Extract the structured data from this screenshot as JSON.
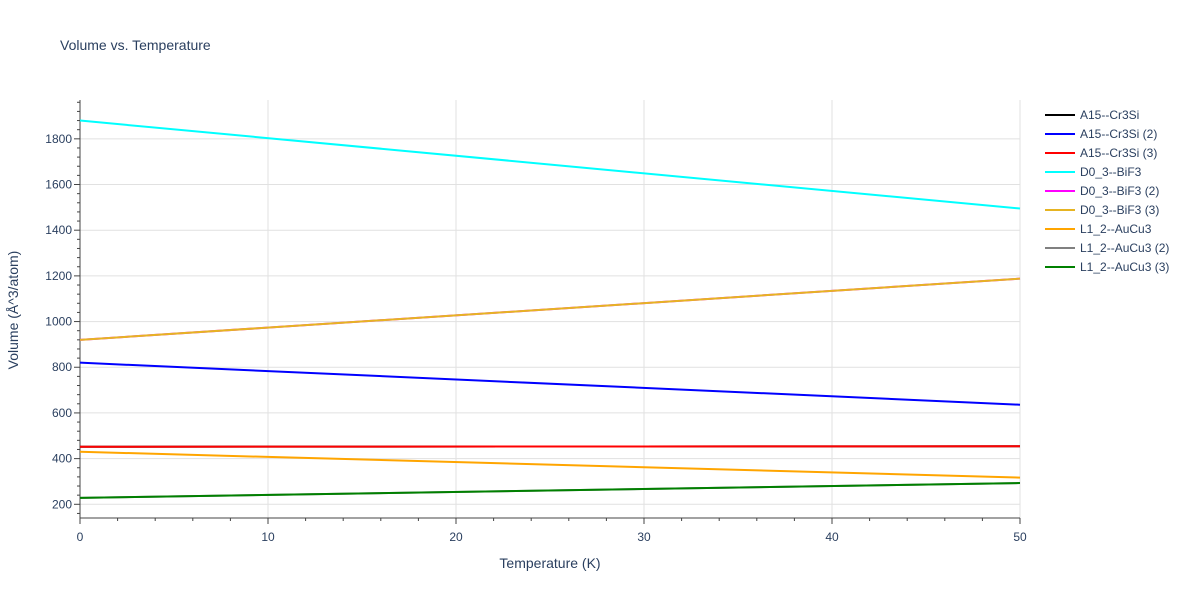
{
  "chart_data": {
    "type": "line",
    "title": "Volume vs. Temperature",
    "xlabel": "Temperature (K)",
    "ylabel": "Volume (Å^3/atom)",
    "xlim": [
      0,
      50
    ],
    "ylim": [
      140,
      1970
    ],
    "xticks": [
      0,
      10,
      20,
      30,
      40,
      50
    ],
    "yticks": [
      200,
      400,
      600,
      800,
      1000,
      1200,
      1400,
      1600,
      1800
    ],
    "grid": true,
    "legend_position": "right",
    "series": [
      {
        "name": "A15--Cr3Si",
        "color": "#000000",
        "x": [
          0,
          50
        ],
        "y": [
          452,
          454
        ]
      },
      {
        "name": "A15--Cr3Si (2)",
        "color": "#0000ff",
        "x": [
          0,
          50
        ],
        "y": [
          820,
          636
        ]
      },
      {
        "name": "A15--Cr3Si (3)",
        "color": "#ff0000",
        "x": [
          0,
          50
        ],
        "y": [
          452,
          454
        ]
      },
      {
        "name": "D0_3--BiF3",
        "color": "#00ffff",
        "x": [
          0,
          50
        ],
        "y": [
          1880,
          1495
        ]
      },
      {
        "name": "D0_3--BiF3 (2)",
        "color": "#ff00ff",
        "x": [
          0,
          50
        ],
        "y": [
          920,
          1188
        ]
      },
      {
        "name": "D0_3--BiF3 (3)",
        "color": "#e6b422",
        "x": [
          0,
          50
        ],
        "y": [
          920,
          1188
        ]
      },
      {
        "name": "L1_2--AuCu3",
        "color": "#ffa500",
        "x": [
          0,
          50
        ],
        "y": [
          430,
          317
        ]
      },
      {
        "name": "L1_2--AuCu3 (2)",
        "color": "#808080",
        "x": [
          0,
          50
        ],
        "y": [
          228,
          293
        ]
      },
      {
        "name": "L1_2--AuCu3 (3)",
        "color": "#008000",
        "x": [
          0,
          50
        ],
        "y": [
          228,
          293
        ]
      }
    ]
  }
}
